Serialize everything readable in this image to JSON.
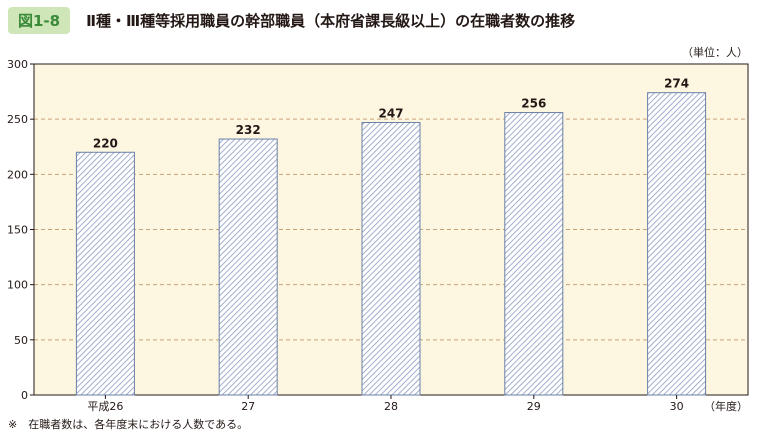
{
  "figure_label": "図1-8",
  "figure_title": "Ⅱ種・Ⅲ種等採用職員の幹部職員（本府省課長級以上）の在職者数の推移",
  "unit_label": "（単位：人）",
  "note": "※　在職者数は、各年度末における人数である。",
  "colors": {
    "badge_bg": "#cfe6b8",
    "badge_text": "#3a8a3a",
    "plot_bg": "#fdf7e1",
    "grid": "#c8a27a",
    "bar_stroke": "#6a7fa6",
    "hatch": "#8a9ac0"
  },
  "chart_data": {
    "type": "bar",
    "categories": [
      "平成26",
      "27",
      "28",
      "29",
      "30"
    ],
    "values": [
      220,
      232,
      247,
      256,
      274
    ],
    "x_unit_label": "（年度）",
    "ylim": [
      0,
      300
    ],
    "yticks": [
      0,
      50,
      100,
      150,
      200,
      250,
      300
    ],
    "grid": true,
    "data_labels": true,
    "legend": false,
    "bar_fill": "diagonal-hatch"
  }
}
